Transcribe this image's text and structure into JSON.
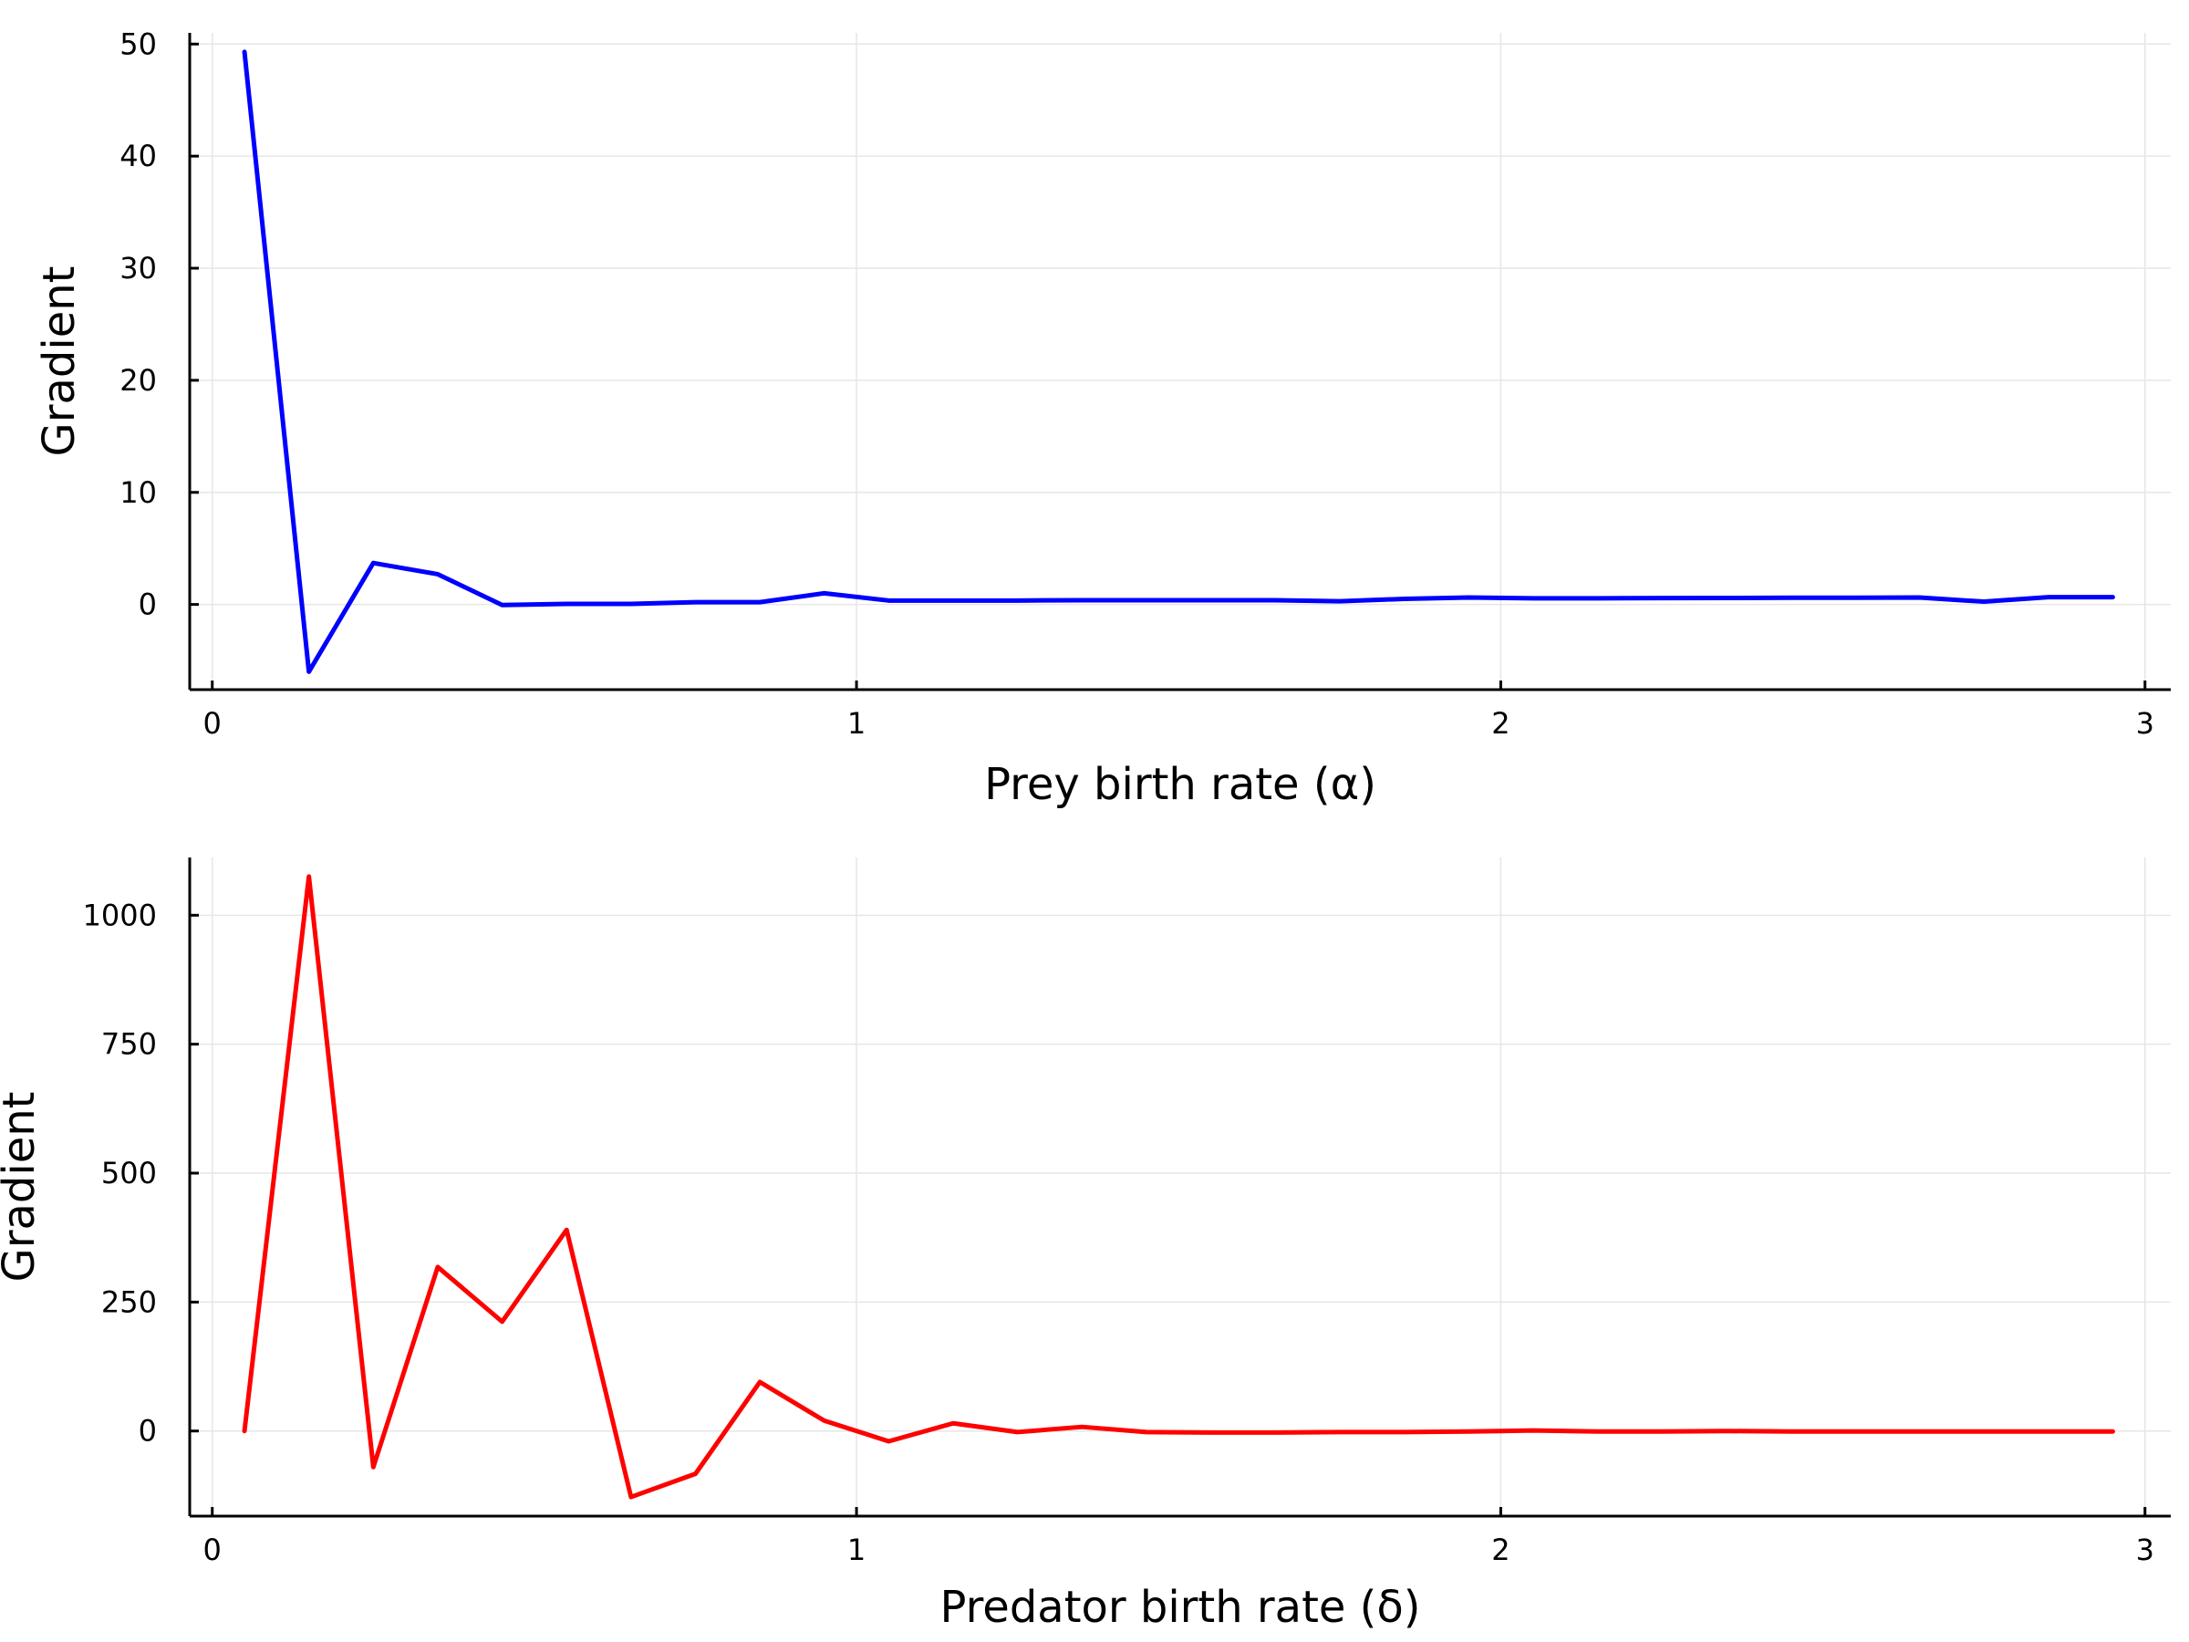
{
  "chart_data": [
    {
      "type": "line",
      "xlabel": "Prey birth rate (α)",
      "ylabel": "Gradient",
      "xlim": [
        -0.035,
        3.04
      ],
      "ylim": [
        -7.6,
        51
      ],
      "xticks": [
        0,
        1,
        2,
        3
      ],
      "xtick_labels": [
        "0",
        "1",
        "2",
        "3"
      ],
      "yticks": [
        0,
        10,
        20,
        30,
        40,
        50
      ],
      "ytick_labels": [
        "0",
        "10",
        "20",
        "30",
        "40",
        "50"
      ],
      "grid": true,
      "legend": "none",
      "series": [
        {
          "color": "#0000ff",
          "x": [
            0.05,
            0.15,
            0.25,
            0.35,
            0.45,
            0.55,
            0.65,
            0.75,
            0.85,
            0.95,
            1.05,
            1.15,
            1.25,
            1.35,
            1.45,
            1.55,
            1.65,
            1.75,
            1.85,
            1.95,
            2.05,
            2.15,
            2.25,
            2.35,
            2.45,
            2.55,
            2.65,
            2.75,
            2.85,
            2.95
          ],
          "y": [
            49.3,
            -6.0,
            3.7,
            2.7,
            -0.05,
            0.05,
            0.05,
            0.2,
            0.2,
            1.0,
            0.35,
            0.35,
            0.35,
            0.38,
            0.38,
            0.38,
            0.38,
            0.28,
            0.5,
            0.62,
            0.55,
            0.55,
            0.57,
            0.58,
            0.6,
            0.6,
            0.62,
            0.25,
            0.65,
            0.65
          ]
        }
      ]
    },
    {
      "type": "line",
      "xlabel": "Predator birth rate (δ)",
      "ylabel": "Gradient",
      "xlim": [
        -0.035,
        3.04
      ],
      "ylim": [
        -165,
        1112
      ],
      "xticks": [
        0,
        1,
        2,
        3
      ],
      "xtick_labels": [
        "0",
        "1",
        "2",
        "3"
      ],
      "yticks": [
        0,
        250,
        500,
        750,
        1000
      ],
      "ytick_labels": [
        "0",
        "250",
        "500",
        "750",
        "1000"
      ],
      "grid": true,
      "legend": "none",
      "series": [
        {
          "color": "#ff0000",
          "x": [
            0.05,
            0.15,
            0.25,
            0.35,
            0.45,
            0.55,
            0.65,
            0.75,
            0.85,
            0.95,
            1.05,
            1.15,
            1.25,
            1.35,
            1.45,
            1.55,
            1.65,
            1.75,
            1.85,
            1.95,
            2.05,
            2.15,
            2.25,
            2.35,
            2.45,
            2.55,
            2.65,
            2.75,
            2.85,
            2.95
          ],
          "y": [
            0,
            1075,
            -70,
            318,
            212,
            390,
            -128,
            -83,
            95,
            20,
            -20,
            15,
            -2,
            8,
            -2,
            -3,
            -3,
            -2,
            -2,
            -1,
            1,
            -1,
            -1,
            0,
            -1,
            -1,
            -1,
            -1,
            -1,
            -1
          ]
        }
      ]
    }
  ]
}
